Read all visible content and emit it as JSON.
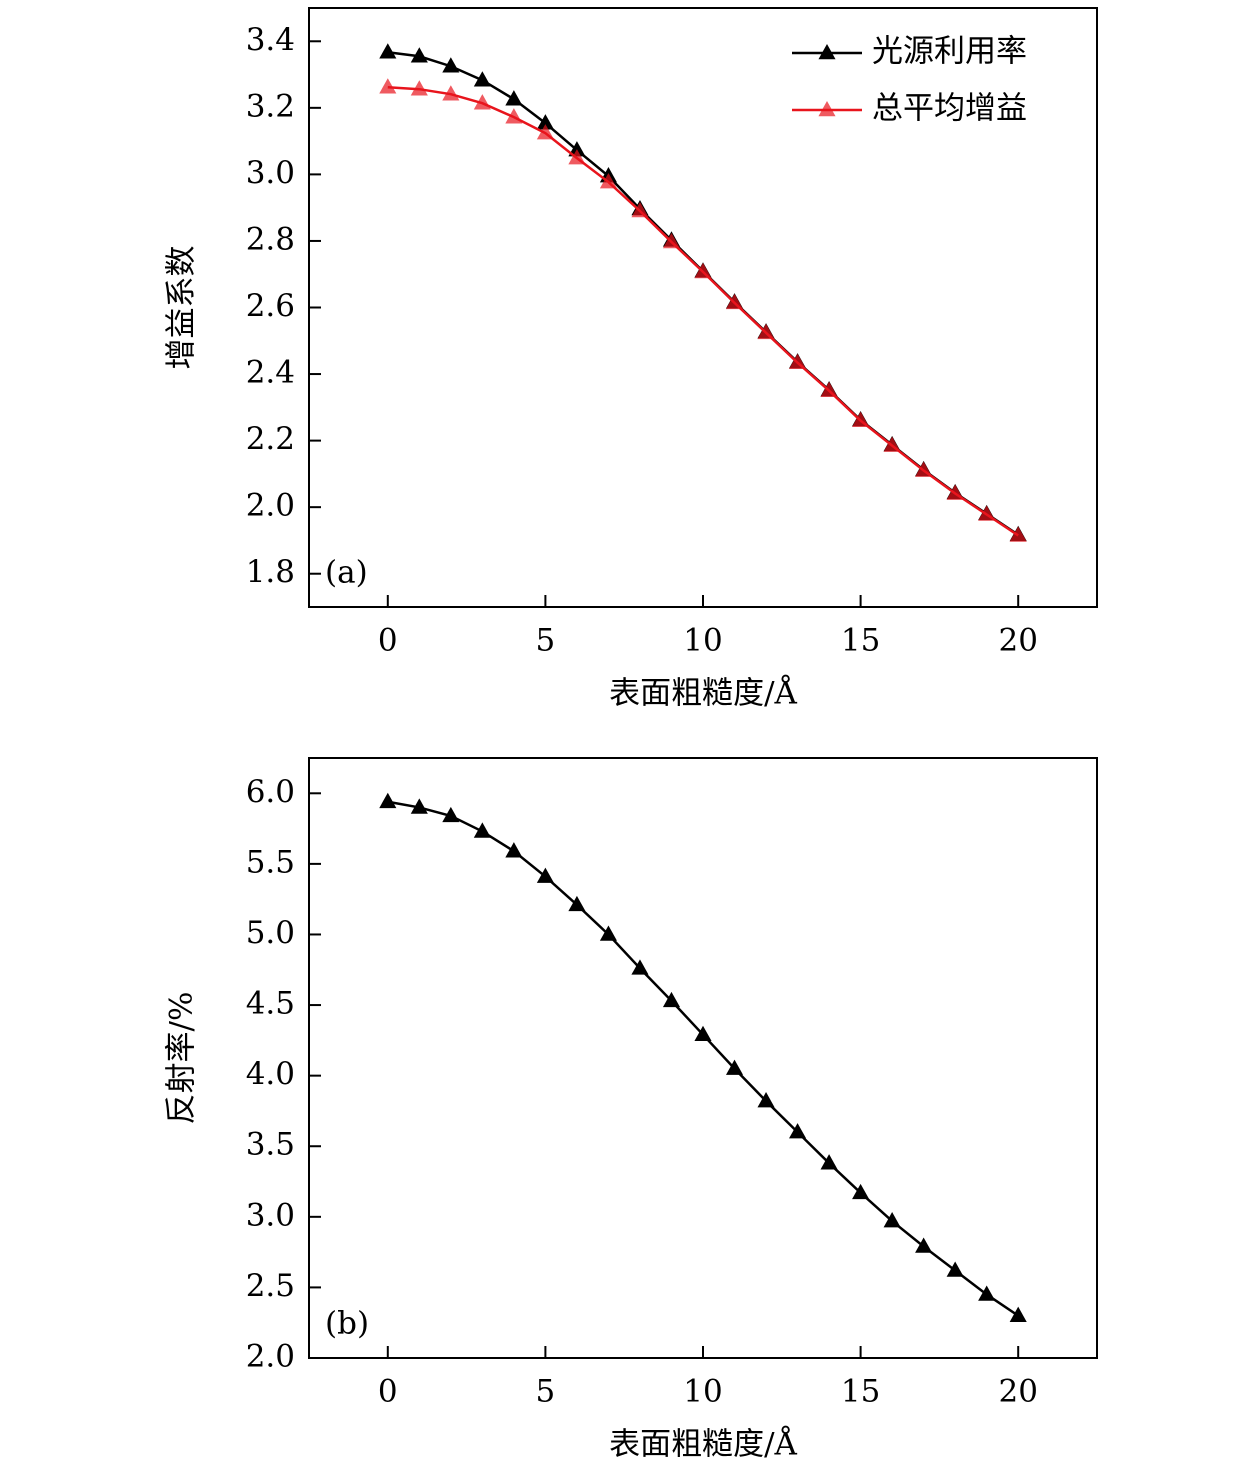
{
  "chart_data": [
    {
      "type": "line",
      "panel_label": "(a)",
      "x_label": "表面粗糙度/Å",
      "y_label": "增益系数",
      "x": [
        0,
        1,
        2,
        3,
        4,
        5,
        6,
        7,
        8,
        9,
        10,
        11,
        12,
        13,
        14,
        15,
        16,
        17,
        18,
        19,
        20
      ],
      "series": [
        {
          "name": "光源利用率",
          "color": "#000000",
          "values": [
            3.367,
            3.355,
            3.325,
            3.283,
            3.226,
            3.154,
            3.073,
            2.995,
            2.896,
            2.802,
            2.709,
            2.616,
            2.526,
            2.436,
            2.352,
            2.262,
            2.187,
            2.112,
            2.043,
            1.98,
            1.917
          ]
        },
        {
          "name": "总平均增益",
          "color": "#e8141c",
          "values": [
            3.262,
            3.256,
            3.241,
            3.214,
            3.172,
            3.124,
            3.049,
            2.977,
            2.89,
            2.797,
            2.707,
            2.614,
            2.524,
            2.434,
            2.35,
            2.26,
            2.185,
            2.11,
            2.041,
            1.978,
            1.915
          ]
        }
      ],
      "xlim": [
        -2.5,
        22.5
      ],
      "xticks": [
        0,
        5,
        10,
        15,
        20
      ],
      "ylim": [
        1.7,
        3.5
      ],
      "yticks": [
        {
          "value": 1.8,
          "label": "1.8"
        },
        {
          "value": 2,
          "label": "2.0"
        },
        2.2,
        2.4,
        2.6,
        2.8,
        {
          "value": 3,
          "label": "3.0"
        },
        3.2,
        3.4
      ],
      "legend": "upper right"
    },
    {
      "type": "line",
      "panel_label": "(b)",
      "x_label": "表面粗糙度/Å",
      "y_label": "反射率/%",
      "x": [
        0,
        1,
        2,
        3,
        4,
        5,
        6,
        7,
        8,
        9,
        10,
        11,
        12,
        13,
        14,
        15,
        16,
        17,
        18,
        19,
        20
      ],
      "series": [
        {
          "color": "#000000",
          "values": [
            5.94,
            5.9,
            5.84,
            5.73,
            5.59,
            5.41,
            5.21,
            5.0,
            4.76,
            4.53,
            4.29,
            4.05,
            3.82,
            3.6,
            3.38,
            3.17,
            2.97,
            2.79,
            2.62,
            2.45,
            2.3
          ]
        }
      ],
      "xlim": [
        -2.5,
        22.5
      ],
      "xticks": [
        0,
        5,
        10,
        15,
        20
      ],
      "ylim": [
        2.0,
        6.25
      ],
      "yticks": [
        {
          "value": 2,
          "label": "2.0"
        },
        2.5,
        {
          "value": 3,
          "label": "3.0"
        },
        3.5,
        {
          "value": 4,
          "label": "4.0"
        },
        4.5,
        {
          "value": 5,
          "label": "5.0"
        },
        5.5,
        {
          "value": 6,
          "label": "6.0"
        }
      ]
    }
  ]
}
